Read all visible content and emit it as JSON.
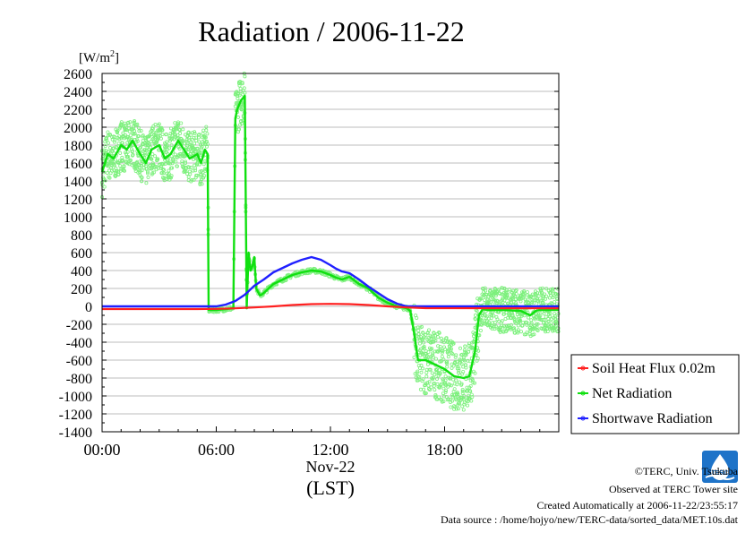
{
  "colors": {
    "soil": "#ff2020",
    "net": "#10e010",
    "net_raw": "#7cf07c",
    "shortwave": "#2020ff",
    "grid": "#bdbdbd",
    "logo": "#1e73c8"
  },
  "icons": {
    "logo": "terc-logo-icon"
  },
  "chart_data": {
    "type": "line",
    "title": "Radiation / 2006-11-22",
    "ylabel": "[W/m",
    "ylabel_sup": "2",
    "ylabel_close": "]",
    "xlabel_date": "Nov-22",
    "xlabel_zone": "(LST)",
    "xlim": [
      0,
      24
    ],
    "ylim": [
      -1400,
      2600
    ],
    "y_ticks": [
      "2600",
      "2400",
      "2200",
      "2000",
      "1800",
      "1600",
      "1400",
      "1200",
      "1000",
      "800",
      "600",
      "400",
      "200",
      "0",
      "-200",
      "-400",
      "-600",
      "-800",
      "-1000",
      "-1200",
      "-1400"
    ],
    "x_ticks": [
      "00:00",
      "06:00",
      "12:00",
      "18:00"
    ],
    "grid": true,
    "legend_position": "bottom-right outside",
    "series": [
      {
        "name": "Soil Heat Flux 0.02m",
        "color_key": "soil",
        "x": [
          0,
          5.0,
          6.0,
          7.0,
          8.0,
          9.0,
          10.0,
          11.0,
          12.0,
          13.0,
          14.0,
          15.0,
          16.0,
          17.0,
          24.0
        ],
        "y": [
          -30,
          -30,
          -28,
          -22,
          -12,
          0,
          15,
          25,
          28,
          25,
          15,
          0,
          -12,
          -20,
          -22
        ]
      },
      {
        "name": "Net Radiation",
        "color_key": "net",
        "x": [
          0,
          0.3,
          0.6,
          1.0,
          1.3,
          1.6,
          2.0,
          2.3,
          2.6,
          3.0,
          3.3,
          3.6,
          4.0,
          4.3,
          4.6,
          5.0,
          5.2,
          5.4,
          5.55,
          5.6,
          6.0,
          6.5,
          6.9,
          7.0,
          7.1,
          7.3,
          7.5,
          7.6,
          7.7,
          7.8,
          7.9,
          8.0,
          8.1,
          8.3,
          8.5,
          9.0,
          9.5,
          10.0,
          10.5,
          11.0,
          11.5,
          12.0,
          12.3,
          12.6,
          13.0,
          13.5,
          14.0,
          14.5,
          15.0,
          15.5,
          16.0,
          16.2,
          16.4,
          16.6,
          17.0,
          17.5,
          18.0,
          18.5,
          19.0,
          19.3,
          19.6,
          19.8,
          20.0,
          20.2,
          21.0,
          22.0,
          22.5,
          22.8,
          23.0,
          23.5,
          24.0
        ],
        "y": [
          1500,
          1700,
          1650,
          1800,
          1750,
          1850,
          1700,
          1600,
          1750,
          1800,
          1650,
          1700,
          1850,
          1750,
          1650,
          1700,
          1600,
          1750,
          1700,
          -40,
          -40,
          -30,
          -20,
          2100,
          2200,
          2300,
          2350,
          -20,
          600,
          400,
          450,
          550,
          200,
          120,
          150,
          250,
          300,
          350,
          380,
          400,
          390,
          350,
          320,
          300,
          330,
          250,
          200,
          100,
          40,
          0,
          -20,
          -50,
          -300,
          -600,
          -600,
          -650,
          -700,
          -780,
          -800,
          -780,
          -500,
          -100,
          -30,
          -40,
          -40,
          -50,
          -100,
          -50,
          -40,
          -40,
          -40
        ]
      },
      {
        "name": "Shortwave Radiation",
        "color_key": "shortwave",
        "x": [
          0,
          6.0,
          6.5,
          7.0,
          7.5,
          8.0,
          8.5,
          9.0,
          9.5,
          10.0,
          10.5,
          11.0,
          11.5,
          12.0,
          12.3,
          12.6,
          13.0,
          13.5,
          14.0,
          14.5,
          15.0,
          15.5,
          16.0,
          24.0
        ],
        "y": [
          0,
          0,
          20,
          60,
          130,
          230,
          300,
          380,
          430,
          480,
          520,
          550,
          520,
          460,
          420,
          390,
          370,
          300,
          220,
          150,
          80,
          30,
          0,
          0
        ]
      }
    ]
  },
  "footer": {
    "credit": "©TERC, Univ. Tsukuba",
    "site": "Observed at TERC Tower site",
    "created": "Created Automatically at 2006-11-22/23:55:17",
    "source": "Data source : /home/hojyo/new/TERC-data/sorted_data/MET.10s.dat"
  }
}
